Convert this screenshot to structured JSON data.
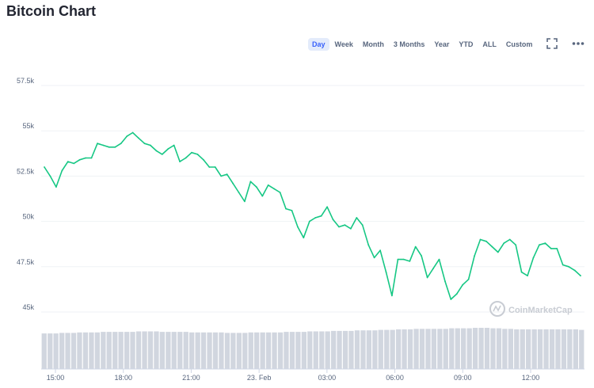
{
  "page_title": "Bitcoin Chart",
  "ranges": [
    {
      "label": "Day",
      "active": true
    },
    {
      "label": "Week",
      "active": false
    },
    {
      "label": "Month",
      "active": false
    },
    {
      "label": "3 Months",
      "active": false
    },
    {
      "label": "Year",
      "active": false
    },
    {
      "label": "YTD",
      "active": false
    },
    {
      "label": "ALL",
      "active": false
    },
    {
      "label": "Custom",
      "active": false
    }
  ],
  "icons": {
    "fullscreen": "fullscreen-icon",
    "more": "more-horizontal-icon",
    "watermark": "coinmarketcap-logo-icon"
  },
  "watermark": "CoinMarketCap",
  "colors": {
    "line": "#16c784",
    "volume": "#d1d6df",
    "grid": "#eff2f5",
    "active_tab_bg": "#e3ebfb",
    "active_tab_text": "#3861fb"
  },
  "chart_data": {
    "type": "line",
    "title": "Bitcoin Chart",
    "xlabel": "",
    "ylabel": "",
    "x_tick_labels": [
      "15:00",
      "18:00",
      "21:00",
      "23. Feb",
      "03:00",
      "06:00",
      "09:00",
      "12:00"
    ],
    "y_tick_values": [
      45000,
      47500,
      50000,
      52500,
      55000,
      57500
    ],
    "y_tick_labels": [
      "45k",
      "47.5k",
      "50k",
      "52.5k",
      "55k",
      "57.5k"
    ],
    "ylim": [
      45000,
      57500
    ],
    "grid": true,
    "series": [
      {
        "values": [
          53000,
          52500,
          51900,
          52800,
          53300,
          53200,
          53400,
          53500,
          53500,
          54300,
          54200,
          54100,
          54100,
          54300,
          54700,
          54900,
          54600,
          54300,
          54200,
          53900,
          53700,
          54000,
          54200,
          53300,
          53500,
          53800,
          53700,
          53400,
          53000,
          53000,
          52500,
          52600,
          52100,
          51600,
          51100,
          52200,
          51900,
          51400,
          52000,
          51800,
          51600,
          50700,
          50600,
          49700,
          49100,
          50000,
          50200,
          50300,
          50800,
          50100,
          49700,
          49800,
          49600,
          50200,
          49800,
          48700,
          48000,
          48400,
          47200,
          45900,
          47900,
          47900,
          47800,
          48600,
          48100,
          46900,
          47400,
          47900,
          46700,
          45700,
          46000,
          46500,
          46800,
          48100,
          49000,
          48900,
          48600,
          48300,
          48800,
          49000,
          48700,
          47200,
          47000,
          48000,
          48700,
          48800,
          48500,
          48500,
          47600,
          47500,
          47300,
          47000
        ]
      }
    ],
    "volume": {
      "values": [
        70,
        70,
        70,
        71,
        71,
        71,
        72,
        72,
        72,
        72,
        73,
        73,
        73,
        73,
        73,
        73,
        74,
        74,
        74,
        74,
        73,
        73,
        73,
        73,
        73,
        72,
        72,
        72,
        72,
        72,
        72,
        71,
        71,
        71,
        71,
        72,
        72,
        72,
        72,
        72,
        72,
        73,
        73,
        73,
        73,
        74,
        74,
        74,
        74,
        75,
        75,
        75,
        75,
        76,
        76,
        76,
        76,
        77,
        77,
        77,
        78,
        78,
        78,
        79,
        79,
        79,
        79,
        79,
        79,
        80,
        80,
        80,
        80,
        81,
        81,
        81,
        80,
        80,
        79,
        79,
        78,
        78,
        78,
        78,
        78,
        78,
        78,
        78,
        78,
        78,
        78,
        77
      ]
    }
  }
}
